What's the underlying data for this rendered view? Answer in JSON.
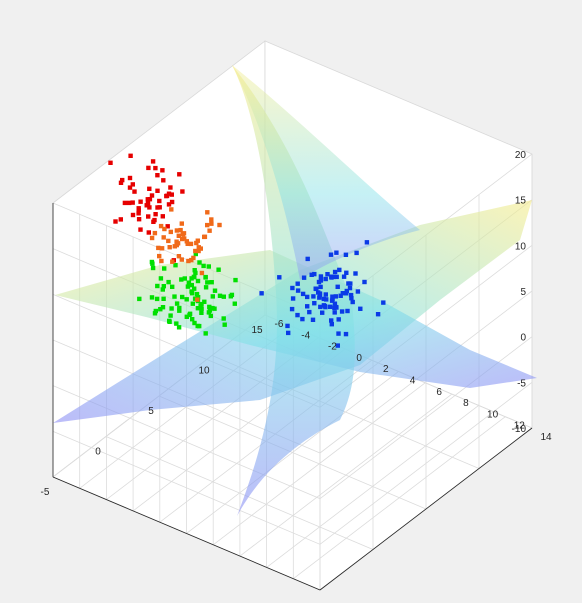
{
  "chart_data": {
    "type": "scatter",
    "subtype": "3d-scatter-with-decision-surfaces",
    "title": "",
    "xlabel": "",
    "ylabel": "",
    "zlabel": "",
    "xlim": [
      -5,
      15
    ],
    "ylim": [
      -6,
      14
    ],
    "zlim": [
      -10,
      20
    ],
    "x_ticks": [
      "-5",
      "0",
      "5",
      "10",
      "15"
    ],
    "y_ticks": [
      "-6",
      "-4",
      "-2",
      "0",
      "2",
      "4",
      "6",
      "8",
      "10",
      "12",
      "14"
    ],
    "z_ticks": [
      "-10",
      "-5",
      "0",
      "5",
      "10",
      "15",
      "20"
    ],
    "grid": true,
    "legend": "none",
    "colors": {
      "cluster_green": "#00e000",
      "cluster_blue": "#0a3ae6",
      "cluster_red": "#e60000",
      "cluster_orange": "#f06a1a",
      "surface_low": "#8f8ff5",
      "surface_mid": "#7fe0e8",
      "surface_high": "#f7ec8a"
    },
    "series": [
      {
        "color": "#00e000",
        "center": [
          -3.5,
          3.0,
          14.0
        ],
        "spread": [
          1.3,
          1.3,
          1.6
        ],
        "count": 90
      },
      {
        "color": "#0a3ae6",
        "center": [
          11.0,
          2.0,
          1.0
        ],
        "spread": [
          1.2,
          1.2,
          1.6
        ],
        "count": 90
      },
      {
        "color": "#e60000",
        "center": [
          3.5,
          -5.5,
          13.0
        ],
        "spread": [
          1.0,
          1.0,
          1.8
        ],
        "count": 55
      },
      {
        "color": "#f06a1a",
        "center": [
          4.0,
          -3.5,
          9.0
        ],
        "spread": [
          1.0,
          1.0,
          1.6
        ],
        "count": 50
      }
    ]
  }
}
